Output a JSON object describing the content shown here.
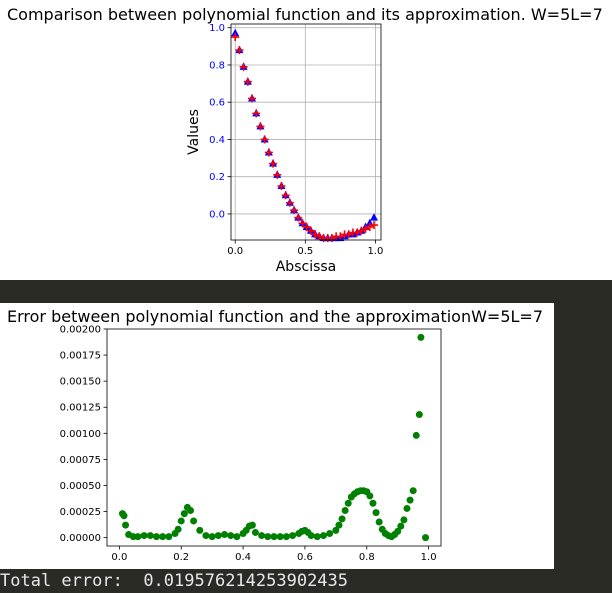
{
  "output": {
    "total_error_label": "Total error:",
    "total_error_value": "0.019576214253902435"
  },
  "chart_data": [
    {
      "type": "scatter",
      "title": "Comparison between polynomial function and its approximation. W=5L=7",
      "xlabel": "Abscissa",
      "ylabel": "Values",
      "xlim": [
        -0.03,
        1.04
      ],
      "ylim": [
        -0.14,
        1.02
      ],
      "grid": true,
      "xticks": [
        0.0,
        0.5,
        1.0
      ],
      "xtick_labels": [
        "0.0",
        "0.5",
        "1.0"
      ],
      "yticks": [
        0.0,
        0.2,
        0.4,
        0.6,
        0.8,
        1.0
      ],
      "ytick_labels": [
        "0.0",
        "0.2",
        "0.4",
        "0.6",
        "0.8",
        "1.0"
      ],
      "ytick_color": "#0000ff",
      "series": [
        {
          "marker": "triangle",
          "color": "#0000ff",
          "x": [
            0.0,
            0.03,
            0.06,
            0.09,
            0.12,
            0.15,
            0.18,
            0.21,
            0.24,
            0.27,
            0.3,
            0.33,
            0.36,
            0.39,
            0.42,
            0.45,
            0.48,
            0.51,
            0.54,
            0.57,
            0.6,
            0.63,
            0.66,
            0.69,
            0.72,
            0.75,
            0.78,
            0.81,
            0.84,
            0.87,
            0.9,
            0.93,
            0.96,
            0.99
          ],
          "y": [
            0.97,
            0.88,
            0.79,
            0.71,
            0.62,
            0.54,
            0.47,
            0.4,
            0.33,
            0.27,
            0.21,
            0.15,
            0.1,
            0.06,
            0.02,
            -0.02,
            -0.05,
            -0.07,
            -0.09,
            -0.11,
            -0.12,
            -0.13,
            -0.13,
            -0.13,
            -0.13,
            -0.13,
            -0.12,
            -0.11,
            -0.11,
            -0.1,
            -0.09,
            -0.07,
            -0.05,
            -0.02
          ]
        },
        {
          "marker": "plus",
          "color": "#ff0000",
          "x": [
            0.0,
            0.03,
            0.06,
            0.09,
            0.12,
            0.15,
            0.18,
            0.21,
            0.24,
            0.27,
            0.3,
            0.33,
            0.36,
            0.39,
            0.42,
            0.45,
            0.48,
            0.51,
            0.54,
            0.57,
            0.6,
            0.63,
            0.66,
            0.69,
            0.72,
            0.75,
            0.78,
            0.81,
            0.84,
            0.87,
            0.9,
            0.93,
            0.96,
            0.99
          ],
          "y": [
            0.95,
            0.88,
            0.79,
            0.71,
            0.62,
            0.54,
            0.47,
            0.4,
            0.33,
            0.27,
            0.21,
            0.15,
            0.1,
            0.06,
            0.02,
            -0.02,
            -0.05,
            -0.07,
            -0.09,
            -0.11,
            -0.12,
            -0.13,
            -0.13,
            -0.13,
            -0.12,
            -0.12,
            -0.11,
            -0.11,
            -0.1,
            -0.1,
            -0.09,
            -0.08,
            -0.07,
            -0.06
          ]
        }
      ]
    },
    {
      "type": "scatter",
      "title": "Error between polynomial function and the approximationW=5L=7",
      "xlabel": "",
      "ylabel": "",
      "xlim": [
        -0.04,
        1.04
      ],
      "ylim": [
        -8e-05,
        0.002
      ],
      "grid": false,
      "xticks": [
        0.0,
        0.2,
        0.4,
        0.6,
        0.8,
        1.0
      ],
      "xtick_labels": [
        "0.0",
        "0.2",
        "0.4",
        "0.6",
        "0.8",
        "1.0"
      ],
      "yticks": [
        0.0,
        0.00025,
        0.0005,
        0.00075,
        0.001,
        0.00125,
        0.0015,
        0.00175,
        0.002
      ],
      "ytick_labels": [
        "0.00000",
        "0.00025",
        "0.00050",
        "0.00075",
        "0.00100",
        "0.00125",
        "0.00150",
        "0.00175",
        "0.00200"
      ],
      "series": [
        {
          "marker": "circle",
          "color": "#008000",
          "x": [
            0.01,
            0.015,
            0.02,
            0.03,
            0.045,
            0.06,
            0.08,
            0.1,
            0.12,
            0.14,
            0.16,
            0.18,
            0.19,
            0.2,
            0.21,
            0.22,
            0.23,
            0.24,
            0.26,
            0.28,
            0.3,
            0.32,
            0.34,
            0.36,
            0.38,
            0.4,
            0.41,
            0.42,
            0.43,
            0.44,
            0.46,
            0.48,
            0.5,
            0.52,
            0.54,
            0.56,
            0.58,
            0.59,
            0.6,
            0.61,
            0.62,
            0.64,
            0.66,
            0.68,
            0.7,
            0.71,
            0.72,
            0.73,
            0.74,
            0.75,
            0.76,
            0.77,
            0.78,
            0.79,
            0.8,
            0.81,
            0.82,
            0.83,
            0.84,
            0.85,
            0.86,
            0.87,
            0.88,
            0.89,
            0.9,
            0.91,
            0.92,
            0.93,
            0.94,
            0.95,
            0.96,
            0.97,
            0.975,
            0.99
          ],
          "y": [
            0.00023,
            0.00021,
            0.00012,
            3e-05,
            1e-05,
            1e-05,
            2e-05,
            2e-05,
            1e-05,
            1e-05,
            1e-05,
            4e-05,
            8e-05,
            0.00016,
            0.00023,
            0.00029,
            0.00026,
            0.00016,
            7e-05,
            2e-05,
            1e-05,
            2e-05,
            3e-05,
            2e-05,
            1e-05,
            4e-05,
            7e-05,
            0.00011,
            0.00012,
            5e-05,
            2e-05,
            1e-05,
            1e-05,
            1e-05,
            1e-05,
            2e-05,
            4e-05,
            6e-05,
            7e-05,
            5e-05,
            2e-05,
            1e-05,
            2e-05,
            4e-05,
            7e-05,
            0.00012,
            0.00018,
            0.00026,
            0.00033,
            0.00039,
            0.00042,
            0.00044,
            0.00045,
            0.00045,
            0.00044,
            0.0004,
            0.00033,
            0.00024,
            0.00015,
            8e-05,
            4e-05,
            2e-05,
            1e-05,
            3e-05,
            6e-05,
            0.00011,
            0.00017,
            0.00028,
            0.00036,
            0.00045,
            0.00098,
            0.00118,
            0.00192,
            0.0
          ]
        }
      ]
    }
  ]
}
